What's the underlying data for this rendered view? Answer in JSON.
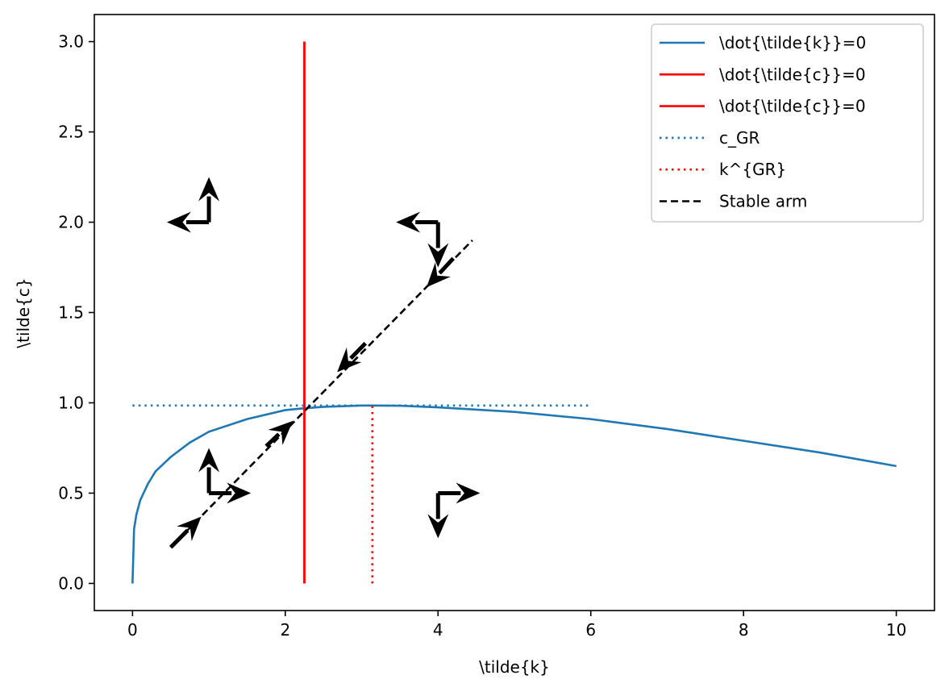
{
  "chart_data": {
    "type": "line",
    "xlabel": "\\tilde{k}",
    "ylabel": "\\tilde{c}",
    "xlim": [
      -0.5,
      10.5
    ],
    "ylim": [
      -0.15,
      3.15
    ],
    "xticks": [
      0,
      2,
      4,
      6,
      8,
      10
    ],
    "yticks": [
      0.0,
      0.5,
      1.0,
      1.5,
      2.0,
      2.5,
      3.0
    ],
    "xtick_labels": [
      "0",
      "2",
      "4",
      "6",
      "8",
      "10"
    ],
    "ytick_labels": [
      "0.0",
      "0.5",
      "1.0",
      "1.5",
      "2.0",
      "2.5",
      "3.0"
    ],
    "grid": false,
    "legend_position": "top-right",
    "series": [
      {
        "name": "\\dot{\\tilde{k}}=0",
        "color": "#1f77b4",
        "style": "solid",
        "x": [
          0,
          0.02,
          0.05,
          0.1,
          0.2,
          0.3,
          0.5,
          0.75,
          1.0,
          1.5,
          2.0,
          2.25,
          2.5,
          3.0,
          3.14,
          3.5,
          4.0,
          5.0,
          6.0,
          7.0,
          8.0,
          9.0,
          10.0
        ],
        "y": [
          0.0,
          0.3,
          0.38,
          0.46,
          0.55,
          0.62,
          0.7,
          0.78,
          0.84,
          0.91,
          0.96,
          0.97,
          0.978,
          0.985,
          0.985,
          0.984,
          0.975,
          0.95,
          0.91,
          0.855,
          0.79,
          0.725,
          0.65
        ]
      },
      {
        "name": "\\dot{\\tilde{c}}=0",
        "color": "#ff0000",
        "style": "solid",
        "x": [
          2.25,
          2.25
        ],
        "y": [
          0.0,
          3.0
        ]
      },
      {
        "name": "\\dot{\\tilde{c}}=0",
        "color": "#ff0000",
        "style": "solid",
        "x": [
          2.25,
          2.25
        ],
        "y": [
          0.0,
          3.0
        ]
      },
      {
        "name": "c_GR",
        "color": "#1f77b4",
        "style": "dotted",
        "x": [
          0,
          6
        ],
        "y": [
          0.985,
          0.985
        ]
      },
      {
        "name": "k^{GR}",
        "color": "#ff0000",
        "style": "dotted",
        "x": [
          3.14,
          3.14
        ],
        "y": [
          0.0,
          0.985
        ]
      },
      {
        "name": "Stable arm",
        "color": "#000000",
        "style": "dashed",
        "x": [
          0.5,
          4.45
        ],
        "y": [
          0.2,
          1.9
        ]
      }
    ],
    "phase_arrows": [
      {
        "x": 1.0,
        "y": 2.0,
        "dx": -0.55,
        "dy": 0.25
      },
      {
        "x": 4.0,
        "y": 2.0,
        "dx": -0.55,
        "dy": -0.25
      },
      {
        "x": 1.0,
        "y": 0.5,
        "dx": 0.55,
        "dy": 0.25
      },
      {
        "x": 4.0,
        "y": 0.5,
        "dx": 0.55,
        "dy": -0.25
      }
    ],
    "stable_arrows": [
      {
        "x0": 0.5,
        "y0": 0.2,
        "x1": 0.9,
        "y1": 0.37
      },
      {
        "x0": 1.75,
        "y0": 0.76,
        "x1": 2.1,
        "y1": 0.9
      },
      {
        "x0": 3.05,
        "y0": 1.33,
        "x1": 2.68,
        "y1": 1.17
      },
      {
        "x0": 4.2,
        "y0": 1.8,
        "x1": 3.85,
        "y1": 1.64
      }
    ]
  }
}
